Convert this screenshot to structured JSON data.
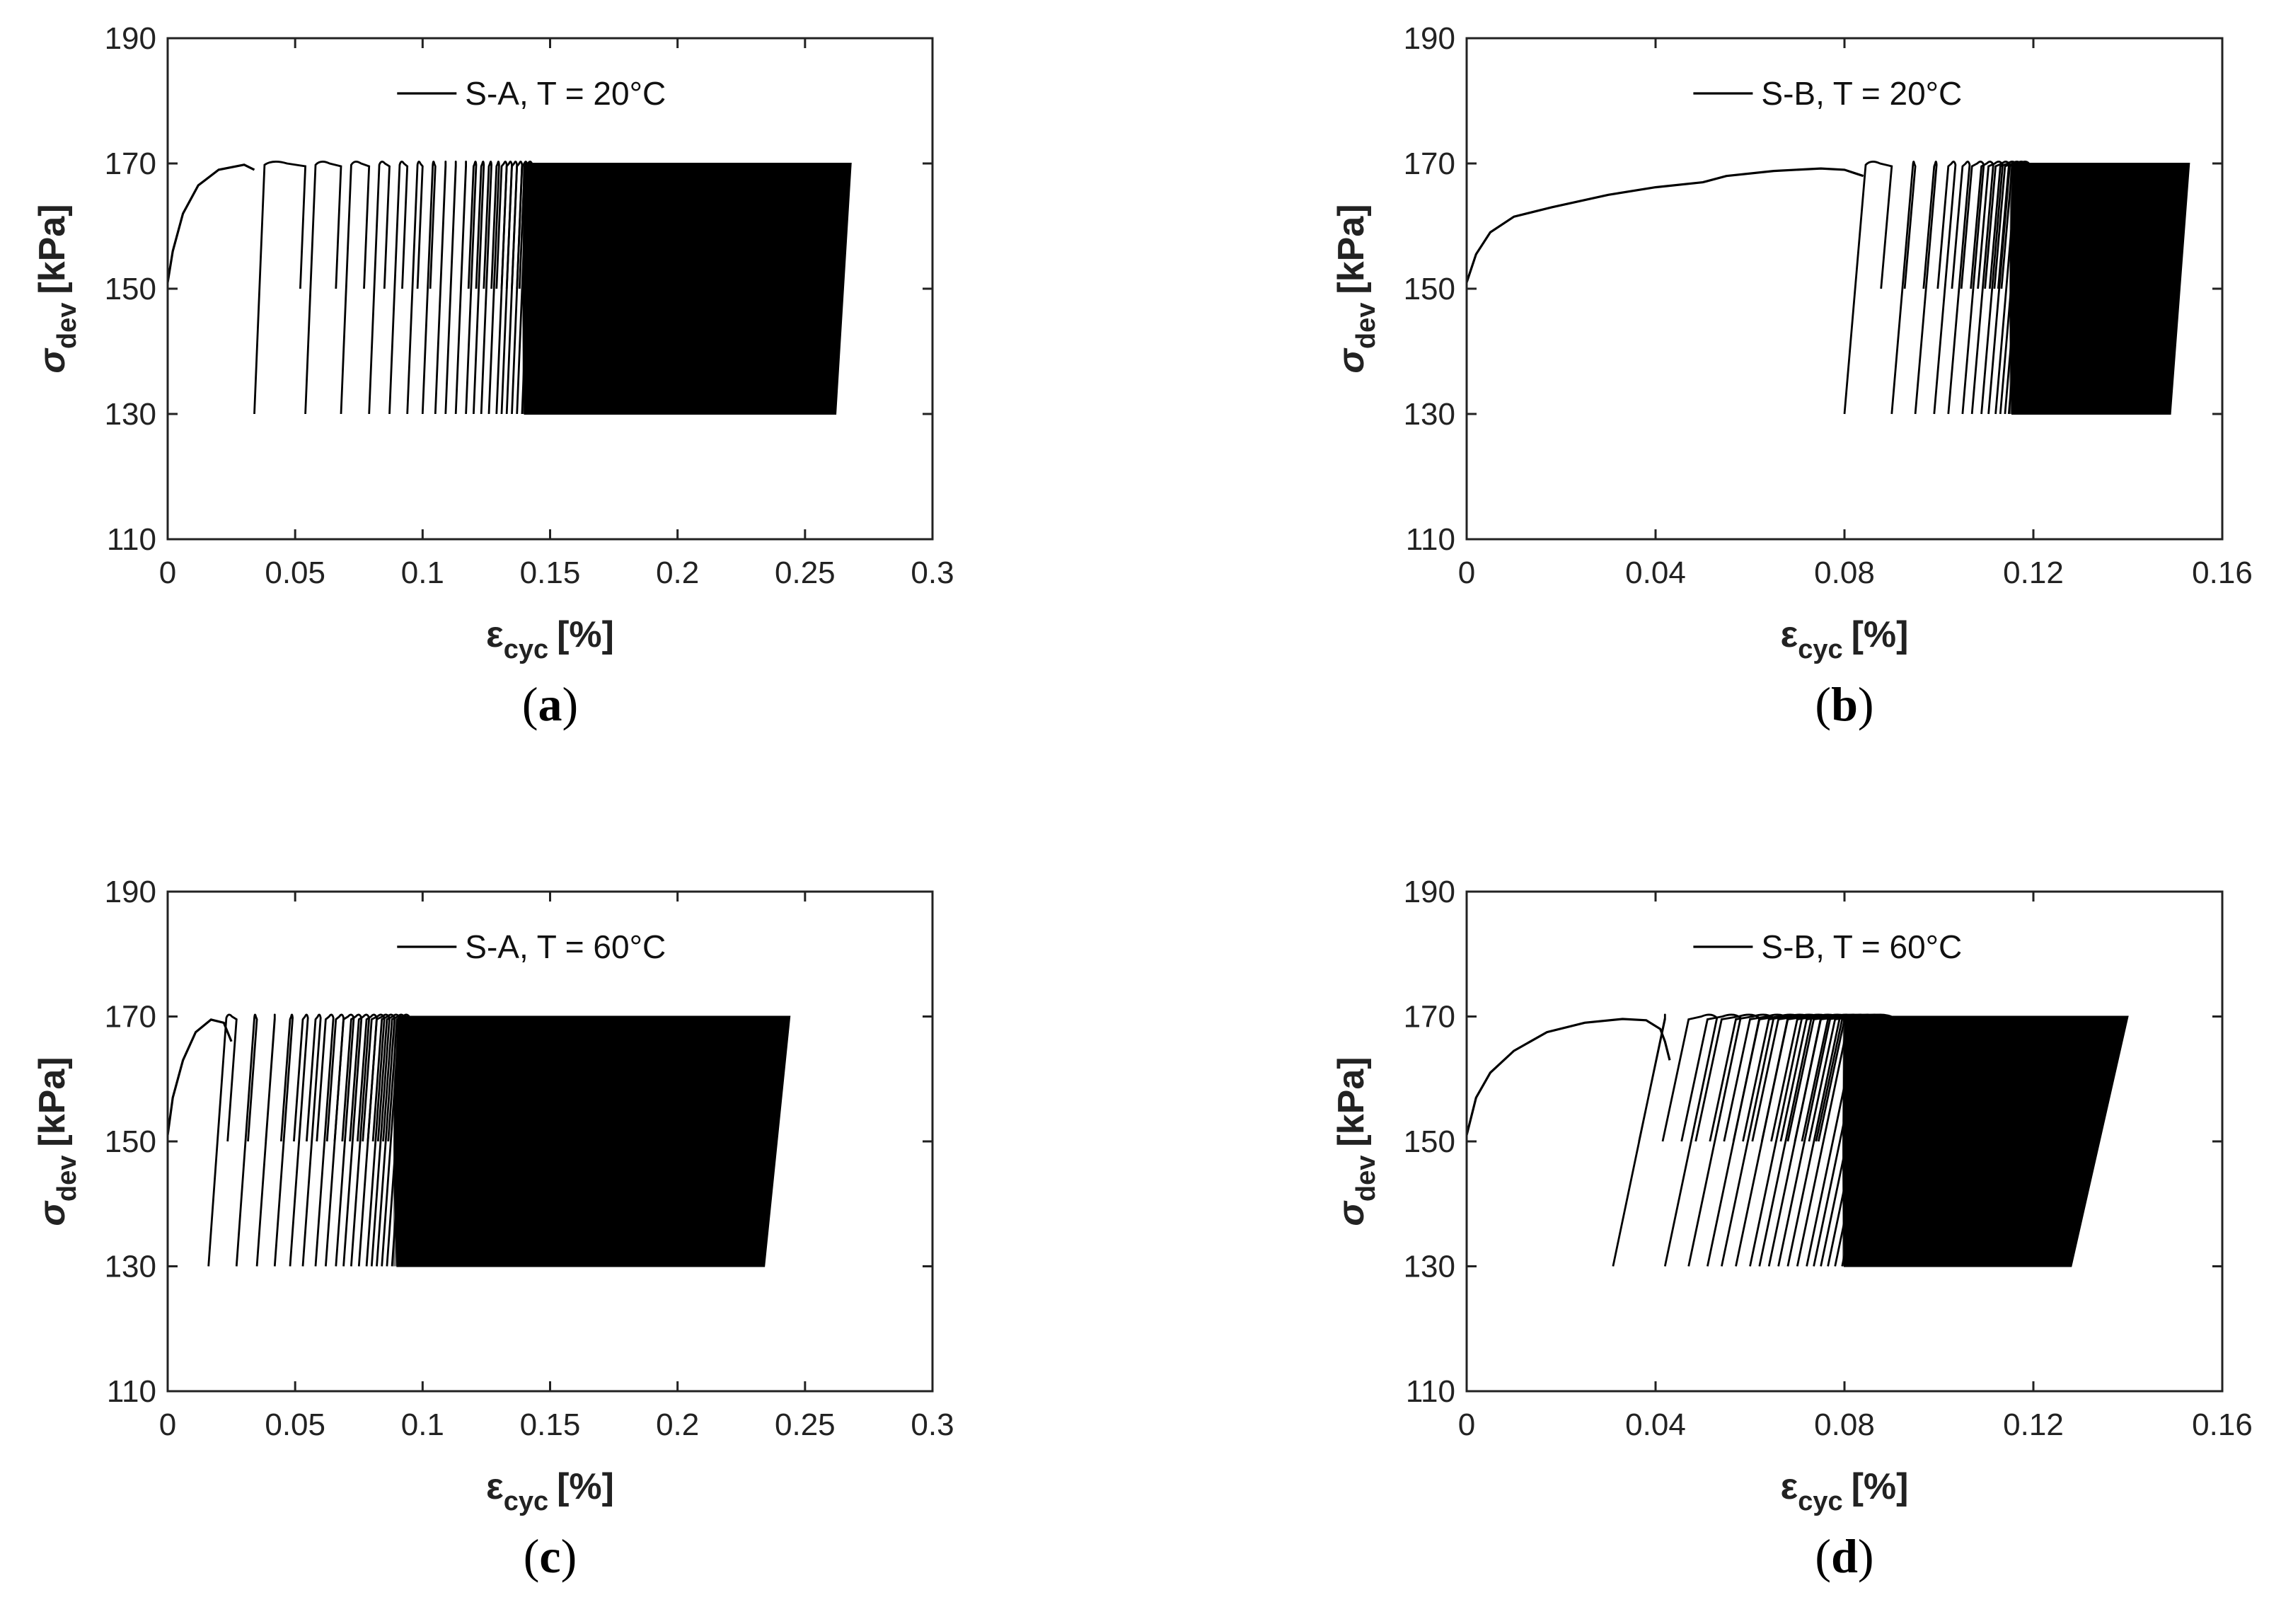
{
  "chart_data": [
    {
      "type": "line",
      "panel": "(a)",
      "panel_letter": "a",
      "legend": "S-A, T = 20°C",
      "legend_placement": "top-center",
      "xlabel_main": "ε",
      "xlabel_sub": "cyc",
      "xlabel_unit": "[%]",
      "ylabel_main": "σ",
      "ylabel_sub": "dev",
      "ylabel_unit": "[kPa]",
      "xlim": [
        0,
        0.3
      ],
      "ylim": [
        110,
        190
      ],
      "xticks": [
        0,
        0.05,
        0.1,
        0.15,
        0.2,
        0.25,
        0.3
      ],
      "xtick_labels": [
        "0",
        "0.05",
        "0.1",
        "0.15",
        "0.2",
        "0.25",
        "0.3"
      ],
      "yticks": [
        110,
        130,
        150,
        170,
        190
      ],
      "ytick_labels": [
        "110",
        "130",
        "150",
        "170",
        "190"
      ],
      "grid": false,
      "series": [
        {
          "sigma_min": 130,
          "sigma_max": 170,
          "initial_loading": [
            [
              0,
              151
            ],
            [
              0.002,
              156
            ],
            [
              0.006,
              162
            ],
            [
              0.012,
              166.5
            ],
            [
              0.02,
              169
            ],
            [
              0.03,
              169.8
            ],
            [
              0.034,
              169
            ]
          ],
          "loop_min_strains": [
            0.034,
            0.054,
            0.068,
            0.079,
            0.087,
            0.094,
            0.1,
            0.105,
            0.109,
            0.113,
            0.117,
            0.12,
            0.123,
            0.126,
            0.129,
            0.131,
            0.133,
            0.135,
            0.137,
            0.139
          ],
          "dense_region_start": 0.14,
          "dense_min_end": 0.262,
          "dense_max_end": 0.268,
          "loop_offset": 0.004
        }
      ]
    },
    {
      "type": "line",
      "panel": "(b)",
      "panel_letter": "b",
      "legend": "S-B, T = 20°C",
      "legend_placement": "top-center",
      "xlabel_main": "ε",
      "xlabel_sub": "cyc",
      "xlabel_unit": "[%]",
      "ylabel_main": "σ",
      "ylabel_sub": "dev",
      "ylabel_unit": "[kPa]",
      "xlim": [
        0,
        0.16
      ],
      "ylim": [
        110,
        190
      ],
      "xticks": [
        0,
        0.04,
        0.08,
        0.12,
        0.16
      ],
      "xtick_labels": [
        "0",
        "0.04",
        "0.08",
        "0.12",
        "0.16"
      ],
      "yticks": [
        110,
        130,
        150,
        170,
        190
      ],
      "ytick_labels": [
        "110",
        "130",
        "150",
        "170",
        "190"
      ],
      "grid": false,
      "series": [
        {
          "sigma_min": 130,
          "sigma_max": 170,
          "initial_loading": [
            [
              0,
              151
            ],
            [
              0.002,
              155.5
            ],
            [
              0.005,
              159
            ],
            [
              0.01,
              161.5
            ],
            [
              0.018,
              163
            ],
            [
              0.03,
              165
            ],
            [
              0.04,
              166.2
            ],
            [
              0.05,
              167
            ],
            [
              0.055,
              168
            ],
            [
              0.065,
              168.8
            ],
            [
              0.075,
              169.2
            ],
            [
              0.08,
              169
            ],
            [
              0.082,
              168.5
            ],
            [
              0.084,
              168
            ]
          ],
          "loop_min_strains": [
            0.08,
            0.09,
            0.095,
            0.099,
            0.102,
            0.105,
            0.107,
            0.109,
            0.1105,
            0.112,
            0.113,
            0.114,
            0.1148
          ],
          "dense_region_start": 0.1155,
          "dense_min_end": 0.149,
          "dense_max_end": 0.153,
          "loop_offset": 0.0045
        }
      ]
    },
    {
      "type": "line",
      "panel": "(c)",
      "panel_letter": "c",
      "legend": "S-A, T = 60°C",
      "legend_placement": "top-center",
      "xlabel_main": "ε",
      "xlabel_sub": "cyc",
      "xlabel_unit": "[%]",
      "ylabel_main": "σ",
      "ylabel_sub": "dev",
      "ylabel_unit": "[kPa]",
      "xlim": [
        0,
        0.3
      ],
      "ylim": [
        110,
        190
      ],
      "xticks": [
        0,
        0.05,
        0.1,
        0.15,
        0.2,
        0.25,
        0.3
      ],
      "xtick_labels": [
        "0",
        "0.05",
        "0.1",
        "0.15",
        "0.2",
        "0.25",
        "0.3"
      ],
      "yticks": [
        110,
        130,
        150,
        170,
        190
      ],
      "ytick_labels": [
        "110",
        "130",
        "150",
        "170",
        "190"
      ],
      "grid": false,
      "series": [
        {
          "sigma_min": 130,
          "sigma_max": 170,
          "initial_loading": [
            [
              0,
              151
            ],
            [
              0.002,
              157
            ],
            [
              0.006,
              163
            ],
            [
              0.011,
              167.5
            ],
            [
              0.017,
              169.5
            ],
            [
              0.022,
              169
            ],
            [
              0.025,
              166
            ]
          ],
          "loop_min_strains": [
            0.016,
            0.027,
            0.035,
            0.042,
            0.048,
            0.053,
            0.058,
            0.062,
            0.066,
            0.069,
            0.072,
            0.075,
            0.078,
            0.08,
            0.082,
            0.084,
            0.086,
            0.088
          ],
          "dense_region_start": 0.09,
          "dense_min_end": 0.234,
          "dense_max_end": 0.244,
          "loop_offset": 0.007
        }
      ]
    },
    {
      "type": "line",
      "panel": "(d)",
      "panel_letter": "d",
      "legend": "S-B, T = 60°C",
      "legend_placement": "top-center",
      "xlabel_main": "ε",
      "xlabel_sub": "cyc",
      "xlabel_unit": "[%]",
      "ylabel_main": "σ",
      "ylabel_sub": "dev",
      "ylabel_unit": "[kPa]",
      "xlim": [
        0,
        0.16
      ],
      "ylim": [
        110,
        190
      ],
      "xticks": [
        0,
        0.04,
        0.08,
        0.12,
        0.16
      ],
      "xtick_labels": [
        "0",
        "0.04",
        "0.08",
        "0.12",
        "0.16"
      ],
      "yticks": [
        110,
        130,
        150,
        170,
        190
      ],
      "ytick_labels": [
        "110",
        "130",
        "150",
        "170",
        "190"
      ],
      "grid": false,
      "series": [
        {
          "sigma_min": 130,
          "sigma_max": 170,
          "initial_loading": [
            [
              0,
              151
            ],
            [
              0.002,
              157
            ],
            [
              0.005,
              161
            ],
            [
              0.01,
              164.5
            ],
            [
              0.017,
              167.5
            ],
            [
              0.025,
              169
            ],
            [
              0.033,
              169.6
            ],
            [
              0.038,
              169.4
            ],
            [
              0.041,
              168
            ],
            [
              0.042,
              166
            ],
            [
              0.043,
              163
            ]
          ],
          "loop_min_strains": [
            0.031,
            0.042,
            0.047,
            0.051,
            0.054,
            0.057,
            0.06,
            0.062,
            0.064,
            0.066,
            0.068,
            0.07,
            0.072,
            0.0735,
            0.075,
            0.0765,
            0.078,
            0.0795
          ],
          "dense_region_start": 0.08,
          "dense_min_end": 0.128,
          "dense_max_end": 0.14,
          "loop_offset": 0.011
        }
      ]
    }
  ]
}
